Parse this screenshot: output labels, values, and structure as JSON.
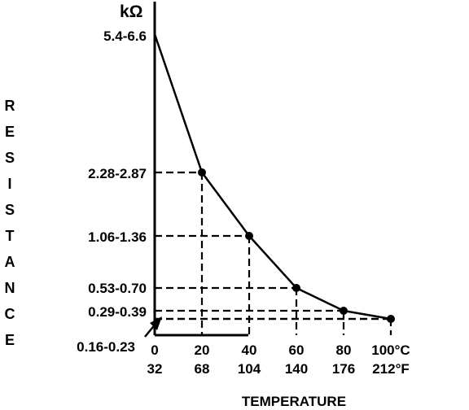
{
  "chart_data": {
    "type": "line",
    "title": "",
    "ylabel": "RESISTANCE",
    "yunit": "kΩ",
    "xlabel": "TEMPERATURE",
    "x_celsius": [
      0,
      20,
      40,
      60,
      80,
      100
    ],
    "x_fahrenheit": [
      32,
      68,
      104,
      140,
      176,
      212
    ],
    "x_tick_celsius": [
      "0",
      "20",
      "40",
      "60",
      "80",
      "100°C"
    ],
    "x_tick_fahrenheit": [
      "32",
      "68",
      "104",
      "140",
      "176",
      "212°F"
    ],
    "series": [
      {
        "resistance_range_labels": [
          "5.4-6.6",
          "2.28-2.87",
          "1.06-1.36",
          "0.53-0.70",
          "0.29-0.39",
          "0.16-0.23"
        ],
        "resistance_min": [
          5.4,
          2.28,
          1.06,
          0.53,
          0.29,
          0.16
        ],
        "resistance_max": [
          6.6,
          2.87,
          1.36,
          0.7,
          0.39,
          0.23
        ]
      }
    ],
    "markers_at_celsius": [
      20,
      40,
      60,
      80,
      100
    ],
    "xlim": [
      0,
      100
    ],
    "grid": false,
    "legend": "none"
  }
}
